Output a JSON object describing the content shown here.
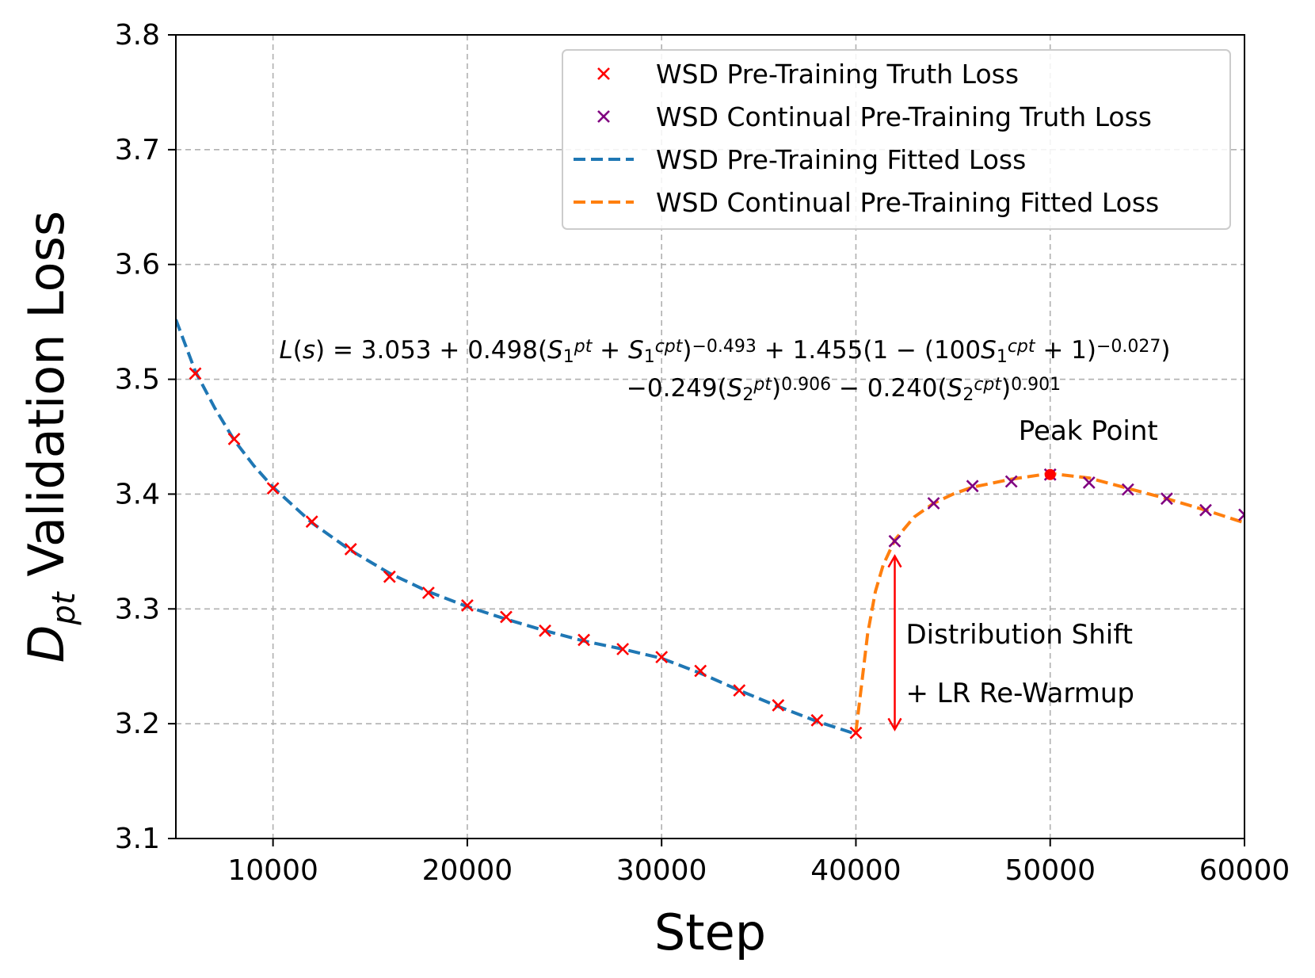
{
  "chart_data": {
    "type": "line",
    "xlabel": "Step",
    "ylabel_main": "D",
    "ylabel_sub": "pt",
    "ylabel_rest": " Validation Loss",
    "xlim": [
      5000,
      60000
    ],
    "ylim": [
      3.1,
      3.8
    ],
    "xticks": [
      10000,
      20000,
      30000,
      40000,
      50000,
      60000
    ],
    "yticks": [
      3.1,
      3.2,
      3.3,
      3.4,
      3.5,
      3.6,
      3.7,
      3.8
    ],
    "grid": true,
    "legend_position": "top-right",
    "legend": [
      {
        "label": "WSD Pre-Training Truth Loss",
        "marker": "x",
        "color": "#ff0000"
      },
      {
        "label": "WSD Continual Pre-Training Truth Loss",
        "marker": "x",
        "color": "#800080"
      },
      {
        "label": "WSD Pre-Training Fitted Loss",
        "line": "dashed",
        "color": "#1f77b4"
      },
      {
        "label": "WSD Continual Pre-Training Fitted Loss",
        "line": "dashed",
        "color": "#ff7f0e"
      }
    ],
    "series": [
      {
        "name": "WSD Pre-Training Truth Loss",
        "kind": "scatter",
        "color": "#ff0000",
        "x": [
          6000,
          8000,
          10000,
          12000,
          14000,
          16000,
          18000,
          20000,
          22000,
          24000,
          26000,
          28000,
          30000,
          32000,
          34000,
          36000,
          38000,
          40000
        ],
        "y": [
          3.505,
          3.448,
          3.405,
          3.376,
          3.352,
          3.328,
          3.314,
          3.303,
          3.293,
          3.281,
          3.273,
          3.265,
          3.258,
          3.246,
          3.229,
          3.216,
          3.203,
          3.192
        ]
      },
      {
        "name": "WSD Continual Pre-Training Truth Loss",
        "kind": "scatter",
        "color": "#800080",
        "x": [
          42000,
          44000,
          46000,
          48000,
          50000,
          52000,
          54000,
          56000,
          58000,
          60000
        ],
        "y": [
          3.359,
          3.392,
          3.407,
          3.411,
          3.417,
          3.41,
          3.404,
          3.396,
          3.386,
          3.382
        ]
      },
      {
        "name": "WSD Pre-Training Fitted Loss",
        "kind": "line",
        "color": "#1f77b4",
        "x": [
          5000,
          6000,
          7000,
          8000,
          9000,
          10000,
          12000,
          14000,
          16000,
          18000,
          20000,
          22000,
          24000,
          26000,
          28000,
          30000,
          32000,
          34000,
          36000,
          38000,
          40000
        ],
        "y": [
          3.552,
          3.507,
          3.475,
          3.447,
          3.425,
          3.406,
          3.375,
          3.351,
          3.331,
          3.315,
          3.302,
          3.291,
          3.281,
          3.272,
          3.265,
          3.257,
          3.244,
          3.229,
          3.215,
          3.202,
          3.191
        ]
      },
      {
        "name": "WSD Continual Pre-Training Fitted Loss",
        "kind": "line",
        "color": "#ff7f0e",
        "x": [
          40000,
          40300,
          40600,
          41000,
          41400,
          42000,
          43000,
          44000,
          45000,
          46000,
          48000,
          50000,
          52000,
          54000,
          56000,
          58000,
          60000
        ],
        "y": [
          3.193,
          3.235,
          3.278,
          3.315,
          3.338,
          3.36,
          3.38,
          3.392,
          3.4,
          3.406,
          3.413,
          3.418,
          3.414,
          3.405,
          3.396,
          3.386,
          3.375
        ]
      }
    ],
    "formula": {
      "line1": [
        {
          "t": "L",
          "style": "italic"
        },
        {
          "t": "("
        },
        {
          "t": "s",
          "style": "italic"
        },
        {
          "t": ") = 3.053 + 0.498("
        },
        {
          "t": "S",
          "style": "italic"
        },
        {
          "t": "1",
          "shift": "sub"
        },
        {
          "t": "pt",
          "shift": "sup",
          "style": "italic"
        },
        {
          "t": " + "
        },
        {
          "t": "S",
          "style": "italic"
        },
        {
          "t": "1",
          "shift": "sub"
        },
        {
          "t": "cpt",
          "shift": "sup",
          "style": "italic"
        },
        {
          "t": ")"
        },
        {
          "t": "−0.493",
          "shift": "sup"
        },
        {
          "t": " + 1.455(1 − (100"
        },
        {
          "t": "S",
          "style": "italic"
        },
        {
          "t": "1",
          "shift": "sub"
        },
        {
          "t": "cpt",
          "shift": "sup",
          "style": "italic"
        },
        {
          "t": " + 1)"
        },
        {
          "t": "−0.027",
          "shift": "sup"
        },
        {
          "t": ")"
        }
      ],
      "line2": [
        {
          "t": "−0.249("
        },
        {
          "t": "S",
          "style": "italic"
        },
        {
          "t": "2",
          "shift": "sub"
        },
        {
          "t": "pt",
          "shift": "sup",
          "style": "italic"
        },
        {
          "t": ")"
        },
        {
          "t": "0.906",
          "shift": "sup"
        },
        {
          "t": " − 0.240("
        },
        {
          "t": "S",
          "style": "italic"
        },
        {
          "t": "2",
          "shift": "sub"
        },
        {
          "t": "cpt",
          "shift": "sup",
          "style": "italic"
        },
        {
          "t": ")"
        },
        {
          "t": "0.901",
          "shift": "sup"
        }
      ]
    },
    "annotations": {
      "peak_label": "Peak Point",
      "peak_point": {
        "x": 50000,
        "y": 3.417,
        "color": "#ff0000"
      },
      "shift_label_1": "Distribution Shift",
      "shift_label_2": "+ LR Re-Warmup",
      "shift_arrow": {
        "x": 42000,
        "y_from": 3.195,
        "y_to": 3.346,
        "color": "#ff0000"
      }
    }
  }
}
